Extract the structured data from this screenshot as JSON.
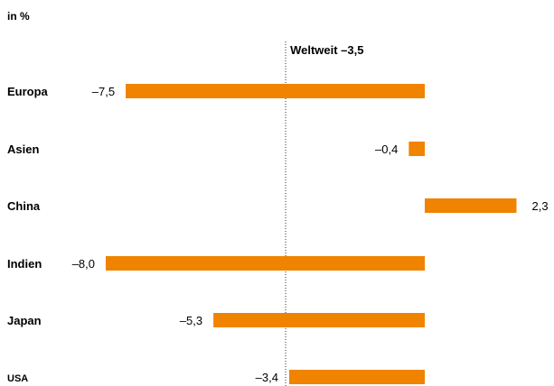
{
  "chart_data": {
    "type": "bar",
    "orientation": "horizontal",
    "unit_label": "in %",
    "reference_label": "Weltweit –3,5",
    "reference_value": -3.5,
    "categories": [
      "Europa",
      "Asien",
      "China",
      "Indien",
      "Japan",
      "USA"
    ],
    "values": [
      -7.5,
      -0.4,
      2.3,
      -8.0,
      -5.3,
      -3.4
    ],
    "value_labels": [
      "–7,5",
      "–0,4",
      "2,3",
      "–8,0",
      "–5,3",
      "–3,4"
    ],
    "xlim": [
      -8.0,
      2.3
    ],
    "bar_color": "#f08300",
    "grid": false
  }
}
